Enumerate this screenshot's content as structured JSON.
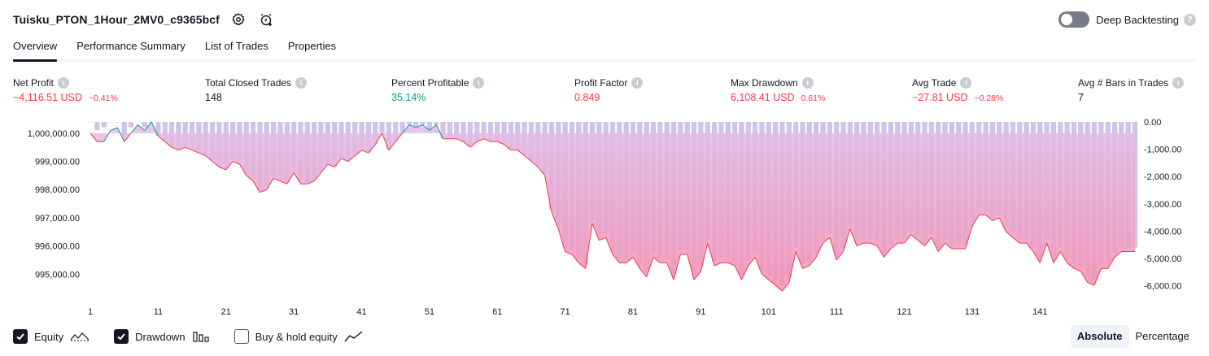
{
  "header": {
    "title": "Tuisku_PTON_1Hour_2MV0_c9365bcf",
    "settings_icon": "gear-icon",
    "alert_icon": "add-alert-clock-icon"
  },
  "deep_backtesting": {
    "label": "Deep Backtesting",
    "enabled": false
  },
  "tabs": [
    {
      "label": "Overview",
      "active": true
    },
    {
      "label": "Performance Summary",
      "active": false
    },
    {
      "label": "List of Trades",
      "active": false
    },
    {
      "label": "Properties",
      "active": false
    }
  ],
  "metrics": {
    "net_profit": {
      "label": "Net Profit",
      "value": "−4,116.51 USD",
      "sub": "−0.41%"
    },
    "total_closed_trades": {
      "label": "Total Closed Trades",
      "value": "148"
    },
    "percent_profitable": {
      "label": "Percent Profitable",
      "value": "35.14%"
    },
    "profit_factor": {
      "label": "Profit Factor",
      "value": "0.849"
    },
    "max_drawdown": {
      "label": "Max Drawdown",
      "value": "6,108.41 USD",
      "sub": "0.61%"
    },
    "avg_trade": {
      "label": "Avg Trade",
      "value": "−27.81 USD",
      "sub": "−0.28%"
    },
    "avg_bars": {
      "label": "Avg # Bars in Trades",
      "value": "7"
    }
  },
  "colors": {
    "negative": "#f23645",
    "positive": "#089981",
    "equity_line": "#f23645",
    "equity_line_up": "#089981",
    "equity_fill_top": "#e1bee7",
    "equity_fill_bottom": "#f48fb1",
    "drawdown_bar": "#d1c4e9"
  },
  "chart_data": {
    "type": "area",
    "x_ticks": [
      1,
      11,
      21,
      31,
      41,
      51,
      61,
      71,
      81,
      91,
      101,
      111,
      121,
      131,
      141
    ],
    "left_axis": {
      "ticks": [
        "1,000,000.00",
        "999,000.00",
        "998,000.00",
        "997,000.00",
        "996,000.00",
        "995,000.00"
      ],
      "tick_values": [
        1000000,
        999000,
        998000,
        997000,
        996000,
        995000
      ],
      "range": [
        994200,
        1000400
      ]
    },
    "right_axis": {
      "ticks": [
        "0.00",
        "-1,000.00",
        "-2,000.00",
        "-3,000.00",
        "-4,000.00",
        "-5,000.00",
        "-6,000.00"
      ],
      "tick_values": [
        0,
        -1000,
        -2000,
        -3000,
        -4000,
        -5000,
        -6000
      ],
      "range": [
        -6400,
        0
      ]
    },
    "series": [
      {
        "name": "Equity",
        "values": [
          1000000,
          999700,
          999700,
          1000100,
          1000200,
          999700,
          1000000,
          1000300,
          1000100,
          1000400,
          999900,
          999700,
          999500,
          999400,
          999500,
          999400,
          999300,
          999200,
          999000,
          998800,
          998700,
          999000,
          998900,
          998500,
          998300,
          997900,
          998000,
          998400,
          998300,
          998200,
          998600,
          998200,
          998200,
          998300,
          998600,
          998900,
          998800,
          999100,
          999000,
          999200,
          999400,
          999300,
          999600,
          1000000,
          999400,
          999700,
          1000000,
          1000300,
          1000200,
          1000300,
          1000100,
          1000300,
          999800,
          999800,
          999800,
          999700,
          999500,
          999700,
          999800,
          999700,
          999700,
          999600,
          999400,
          999400,
          999200,
          999000,
          998800,
          998500,
          997200,
          996600,
          995800,
          995700,
          995400,
          995200,
          996800,
          996200,
          996300,
          995700,
          995400,
          995400,
          995600,
          995200,
          994900,
          995600,
          995400,
          995400,
          994800,
          995700,
          995700,
          994800,
          995100,
          996100,
          995300,
          995400,
          995400,
          995300,
          994800,
          995300,
          995600,
          995000,
          994800,
          994600,
          994400,
          994700,
          995800,
          995200,
          995300,
          995600,
          996100,
          996300,
          995500,
          995800,
          996600,
          996000,
          996100,
          996100,
          996000,
          995600,
          995900,
          996100,
          996100,
          996400,
          996200,
          996000,
          996300,
          995800,
          996100,
          995900,
          995900,
          995900,
          996700,
          997100,
          997100,
          996900,
          997000,
          996500,
          996300,
          996100,
          996100,
          995800,
          995400,
          996100,
          995400,
          995800,
          995400,
          995200,
          995100,
          994700,
          994600,
          995200,
          995200,
          995600,
          995800,
          995800,
          995800
        ]
      },
      {
        "name": "Drawdown",
        "values": [
          0,
          -300,
          -200,
          0,
          0,
          -500,
          -200,
          0,
          -200,
          0,
          -500,
          -700,
          -900,
          -1000,
          -900,
          -1000,
          -1100,
          -1200,
          -1400,
          -1600,
          -1700,
          -1400,
          -1500,
          -1900,
          -2100,
          -2500,
          -2400,
          -2000,
          -2100,
          -2200,
          -1800,
          -2200,
          -2200,
          -2100,
          -1800,
          -1500,
          -1600,
          -1300,
          -1400,
          -1200,
          -1000,
          -1100,
          -800,
          -400,
          -1000,
          -700,
          -400,
          -100,
          -200,
          -100,
          -300,
          -100,
          -600,
          -600,
          -600,
          -700,
          -900,
          -700,
          -600,
          -700,
          -700,
          -800,
          -1000,
          -1000,
          -1200,
          -1400,
          -1600,
          -1900,
          -3200,
          -3800,
          -4600,
          -4700,
          -5000,
          -5200,
          -3600,
          -4200,
          -4100,
          -4700,
          -5000,
          -5000,
          -4800,
          -5200,
          -5500,
          -4800,
          -5000,
          -5000,
          -5600,
          -4700,
          -4700,
          -5600,
          -5300,
          -4300,
          -5100,
          -5000,
          -5000,
          -5100,
          -5600,
          -5100,
          -4800,
          -5400,
          -5600,
          -5800,
          -6000,
          -5700,
          -4600,
          -5200,
          -5100,
          -4800,
          -4300,
          -4100,
          -4900,
          -4600,
          -3800,
          -4400,
          -4300,
          -4300,
          -4400,
          -4800,
          -4500,
          -4300,
          -4300,
          -4000,
          -4200,
          -4400,
          -4100,
          -4600,
          -4300,
          -4500,
          -4500,
          -4500,
          -3700,
          -3300,
          -3300,
          -3500,
          -3400,
          -3900,
          -4100,
          -4300,
          -4300,
          -4600,
          -5000,
          -4300,
          -5000,
          -4600,
          -5000,
          -5200,
          -5300,
          -5700,
          -5800,
          -5200,
          -5200,
          -4800,
          -4600,
          -4600,
          -4600
        ]
      }
    ],
    "legend": [
      {
        "name": "Equity",
        "checked": true,
        "icon": "equity-line-icon"
      },
      {
        "name": "Drawdown",
        "checked": true,
        "icon": "drawdown-bars-icon"
      },
      {
        "name": "Buy & hold equity",
        "checked": false,
        "icon": "buy-hold-line-icon"
      }
    ],
    "grid": false,
    "legend_position": "bottom-left"
  },
  "view_modes": [
    {
      "label": "Absolute",
      "active": true
    },
    {
      "label": "Percentage",
      "active": false
    }
  ]
}
